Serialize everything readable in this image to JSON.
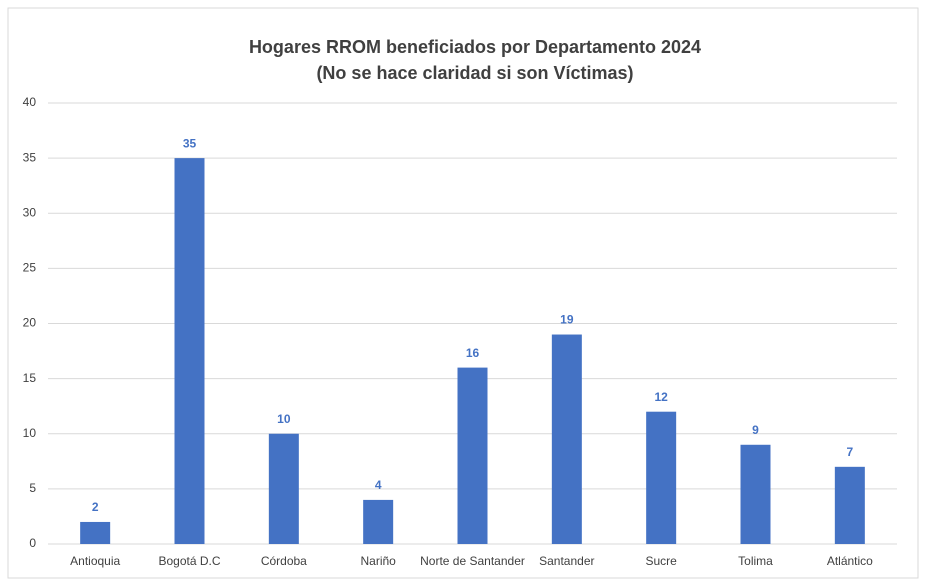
{
  "chart_data": {
    "type": "bar",
    "title": "Hogares RROM beneficiados por Departamento 2024",
    "subtitle": "(No se hace claridad si son Víctimas)",
    "categories": [
      "Antioquia",
      "Bogotá D.C",
      "Córdoba",
      "Nariño",
      "Norte de Santander",
      "Santander",
      "Sucre",
      "Tolima",
      "Atlántico"
    ],
    "values": [
      2,
      35,
      10,
      4,
      16,
      19,
      12,
      9,
      7
    ],
    "color": "#4472c4",
    "ylim": [
      0,
      40
    ],
    "yticks": [
      0,
      5,
      10,
      15,
      20,
      25,
      30,
      35,
      40
    ],
    "grid": true
  }
}
